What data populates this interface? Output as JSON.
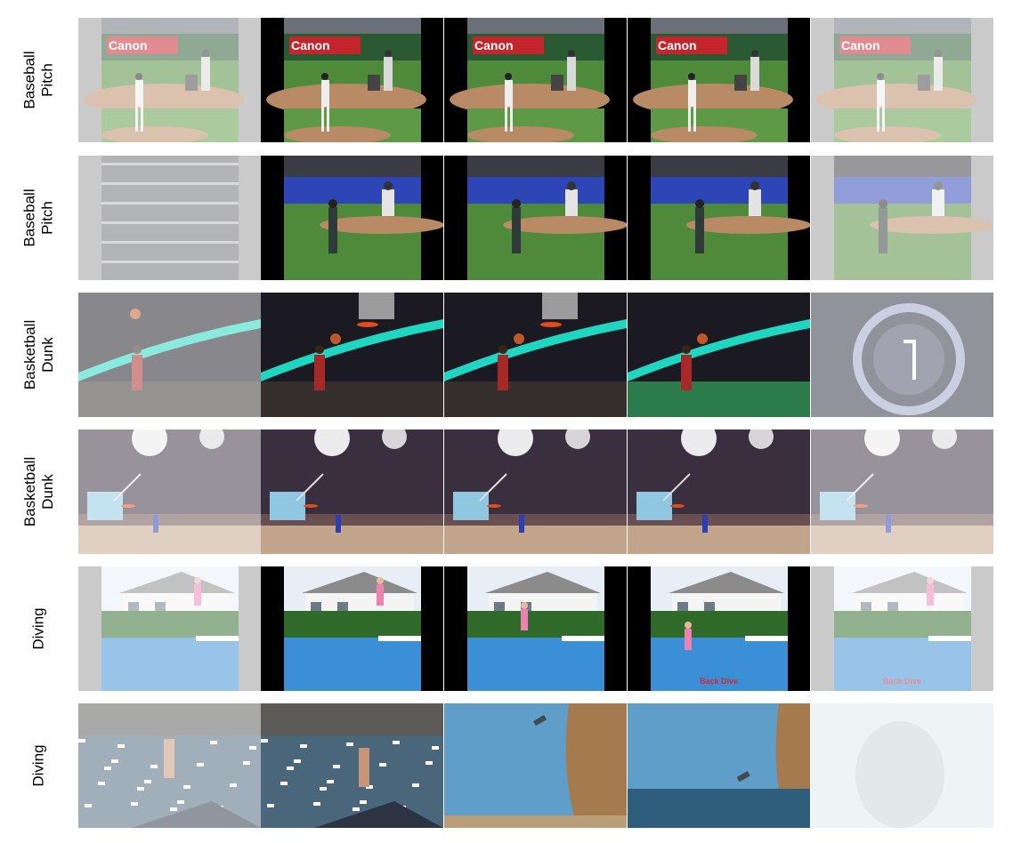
{
  "rows": [
    {
      "label": "Baseball\nPitch",
      "scene": "baseball1"
    },
    {
      "label": "Baseball\nPitch",
      "scene": "baseball2"
    },
    {
      "label": "Basketball\nDunk",
      "scene": "basket1"
    },
    {
      "label": "Basketball\nDunk",
      "scene": "basket2"
    },
    {
      "label": "Diving",
      "scene": "dive1"
    },
    {
      "label": "Diving",
      "scene": "dive2"
    }
  ],
  "frames_per_row": 5,
  "faded_frames": [
    0,
    4
  ],
  "colors": {
    "letterbox": "#000000",
    "faded_pillar": "#9a9a9a",
    "field_green": "#4f8a3a",
    "dirt": "#b88a66",
    "pool_blue": "#3a8fd6",
    "sky_blue": "#5f9ec8",
    "arena_dark": "#1b1a22",
    "banner_red": "#c4242c",
    "wall_blue": "#2e45b8"
  },
  "overlays": [
    {
      "row": 0,
      "frame": 1,
      "text": "Canon",
      "kind": "banner"
    },
    {
      "row": 0,
      "frame": 2,
      "text": "Canon",
      "kind": "banner"
    },
    {
      "row": 0,
      "frame": 3,
      "text": "Canon",
      "kind": "banner"
    },
    {
      "row": 0,
      "frame": 0,
      "text": "Canon",
      "kind": "banner"
    },
    {
      "row": 0,
      "frame": 4,
      "text": "Canon",
      "kind": "banner"
    },
    {
      "row": 4,
      "frame": 3,
      "text": "Back Dive",
      "kind": "caption"
    },
    {
      "row": 4,
      "frame": 4,
      "text": "Back Dive",
      "kind": "caption"
    }
  ]
}
